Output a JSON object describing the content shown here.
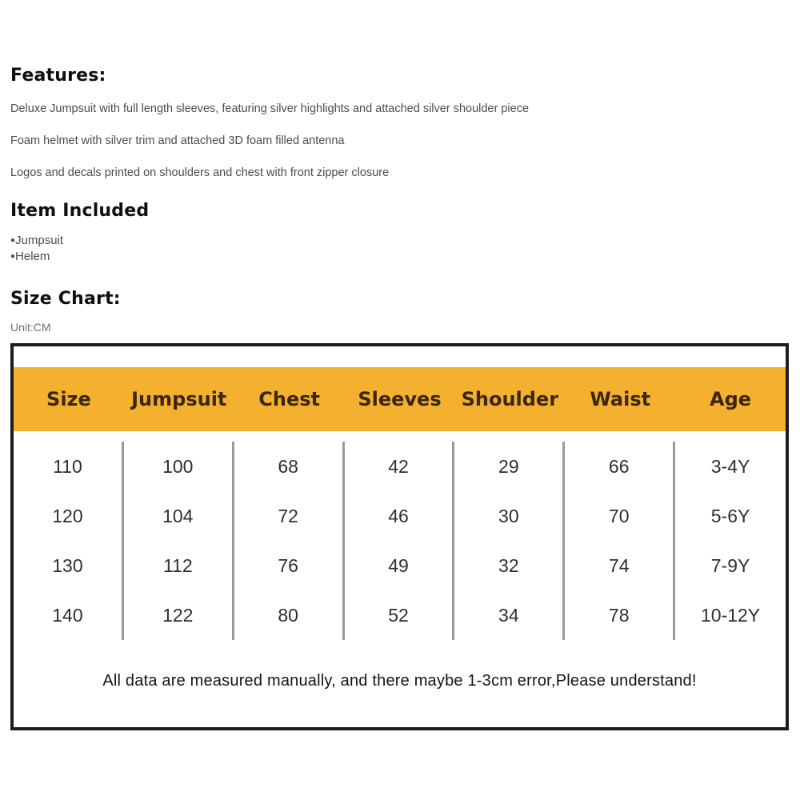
{
  "features": {
    "heading": "Features:",
    "items": [
      "Deluxe Jumpsuit with full length sleeves, featuring silver highlights and attached silver shoulder piece",
      "Foam helmet with silver trim and attached 3D foam filled antenna",
      "Logos and decals printed on shoulders and chest with front zipper closure"
    ]
  },
  "item_included": {
    "heading": "Item Included",
    "bullet": "●",
    "items": [
      "Jumpsuit",
      "Helem"
    ]
  },
  "size_chart": {
    "heading": "Size Chart:",
    "unit_label": "Unit:CM",
    "headers": [
      "Size",
      "Jumpsuit",
      "Chest",
      "Sleeves",
      "Shoulder",
      "Waist",
      "Age"
    ],
    "rows": [
      [
        "110",
        "100",
        "68",
        "42",
        "29",
        "66",
        "3-4Y"
      ],
      [
        "120",
        "104",
        "72",
        "46",
        "30",
        "70",
        "5-6Y"
      ],
      [
        "130",
        "112",
        "76",
        "49",
        "32",
        "74",
        "7-9Y"
      ],
      [
        "140",
        "122",
        "80",
        "52",
        "34",
        "78",
        "10-12Y"
      ]
    ],
    "note": "All data are measured manually, and there maybe 1-3cm error,Please understand!"
  },
  "colors": {
    "header_band": "#F4B12F",
    "header_text": "#3B2606",
    "table_border": "#1C1C1C",
    "divider": "#9A9A9A"
  }
}
